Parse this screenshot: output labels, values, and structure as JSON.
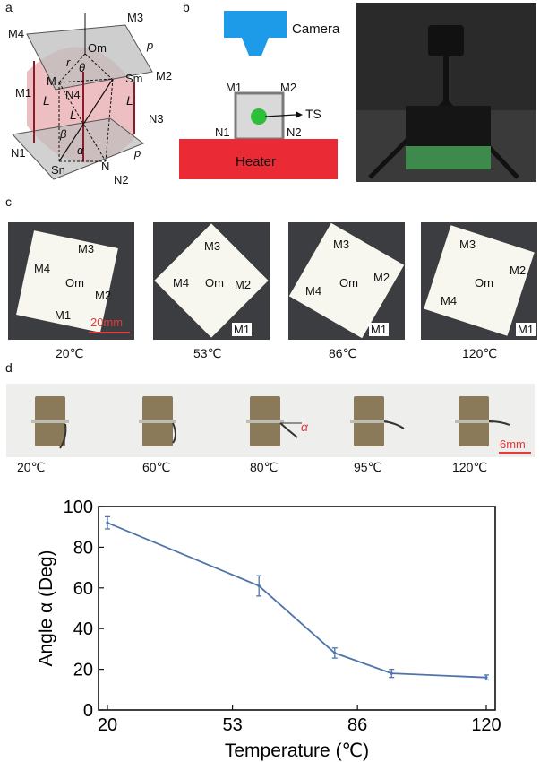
{
  "panel_labels": {
    "a": "a",
    "b": "b",
    "c": "c",
    "d": "d"
  },
  "panel_a": {
    "points": {
      "M1": "M1",
      "M2": "M2",
      "M3": "M3",
      "M4": "M4",
      "N1": "N1",
      "N2": "N2",
      "N3": "N3",
      "N4": "N4",
      "Om": "Om",
      "Sm": "Sm",
      "Sn": "Sn",
      "M": "M",
      "N": "N"
    },
    "symbols": {
      "r": "r",
      "theta": "θ",
      "L_left": "L",
      "L_mid": "L",
      "L_right": "L",
      "beta": "β",
      "alpha": "α",
      "p_top": "p",
      "p_bottom": "p"
    }
  },
  "panel_b": {
    "camera_label": "Camera",
    "heater_label": "Heater",
    "ts_label": "TS",
    "corners": {
      "M1": "M1",
      "M2": "M2",
      "N1": "N1",
      "N2": "N2"
    },
    "colors": {
      "camera": "#1e9be8",
      "heater": "#ea2a35",
      "sample_fill": "#d9d9d9",
      "ts_dot": "#2bbf3a"
    }
  },
  "panel_c": {
    "photos": [
      {
        "temp": "20℃",
        "labels": {
          "M1": "M1",
          "M2": "M2",
          "M3": "M3",
          "M4": "M4",
          "Om": "Om"
        },
        "scale_bar": "20mm"
      },
      {
        "temp": "53℃",
        "labels": {
          "M1": "M1",
          "M2": "M2",
          "M3": "M3",
          "M4": "M4",
          "Om": "Om"
        }
      },
      {
        "temp": "86℃",
        "labels": {
          "M1": "M1",
          "M2": "M2",
          "M3": "M3",
          "M4": "M4",
          "Om": "Om"
        }
      },
      {
        "temp": "120℃",
        "labels": {
          "M1": "M1",
          "M2": "M2",
          "M3": "M3",
          "M4": "M4",
          "Om": "Om"
        }
      }
    ]
  },
  "panel_d": {
    "photos": [
      "20℃",
      "60℃",
      "80℃",
      "95℃",
      "120℃"
    ],
    "alpha_label": "α",
    "scale_bar": "6mm"
  },
  "chart_data": {
    "type": "line",
    "x": [
      20,
      60,
      80,
      95,
      120
    ],
    "y": [
      92,
      61,
      28,
      18,
      16
    ],
    "error": [
      3,
      5,
      2.5,
      2,
      1.2
    ],
    "xticks": [
      "20",
      "53",
      "86",
      "120"
    ],
    "xtick_values": [
      20,
      53,
      86,
      120
    ],
    "yticks": [
      "0",
      "20",
      "40",
      "60",
      "80",
      "100"
    ],
    "xlim": [
      20,
      120
    ],
    "ylim": [
      0,
      100
    ],
    "xlabel": "Temperature (℃)",
    "ylabel": "Angle α (Deg)",
    "line_color": "#4f74ac"
  }
}
